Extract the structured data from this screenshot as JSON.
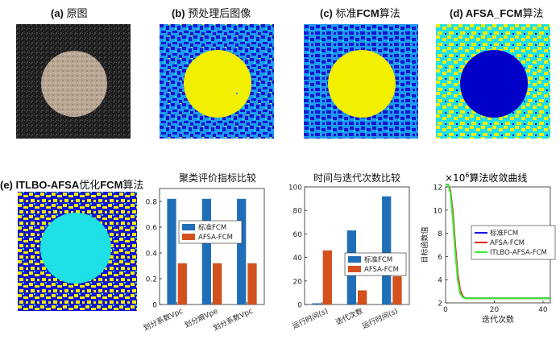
{
  "titles": {
    "a_label": "(a)",
    "a_text": "原图",
    "b_label": "(b)",
    "b_text": "预处理后图像",
    "c_label": "(c)",
    "c_text": "标准",
    "c_tail": "FCM",
    "c_end": "算法",
    "d_text": "(d) AFSA_FCM",
    "d_end": "算法",
    "e_text": "(e) ITLBO-AFSA",
    "e_mid": "优化",
    "e_fcm": "FCM",
    "e_end": "算法"
  },
  "colors": {
    "blue": "#1f1fd6",
    "yellow": "#f2ef00",
    "cyan": "#1ee0e6",
    "darkblue": "#0000c8",
    "fcm_bar": "#1f6fb8",
    "afsa_bar": "#d3511d",
    "line_blue": "#1414e6",
    "line_red": "#ee1c1c",
    "line_green": "#33ee33"
  },
  "chart_data": [
    {
      "type": "bar",
      "title": "聚类评价指标比较",
      "categories": [
        "划分系数Vpc",
        "划分熵Vpe",
        "划分系数Vpc"
      ],
      "series": [
        {
          "name": "标准FCM",
          "values": [
            0.82,
            0.82,
            0.82
          ]
        },
        {
          "name": "AFSA-FCM",
          "values": [
            0.32,
            0.32,
            0.32
          ]
        }
      ],
      "ylim": [
        0,
        0.9
      ],
      "yticks": [
        "0",
        "0.2",
        "0.4",
        "0.6",
        "0.8"
      ],
      "legend_position": "upper-middle"
    },
    {
      "type": "bar",
      "title": "时间与迭代次数比较",
      "categories": [
        "运行时间(s)",
        "迭代次数",
        "运行时间(s)"
      ],
      "series": [
        {
          "name": "标准FCM",
          "values": [
            1,
            63,
            92
          ]
        },
        {
          "name": "AFSA-FCM",
          "values": [
            46,
            12,
            24
          ]
        }
      ],
      "ylim": [
        0,
        100
      ],
      "yticks": [
        "0",
        "20",
        "40",
        "60",
        "80",
        "100"
      ],
      "legend_position": "middle-right"
    },
    {
      "type": "line",
      "title": "算法收敛曲线",
      "exponent_label": "×10",
      "exponent_power": "6",
      "xlabel": "迭代次数",
      "ylabel": "目标函数值",
      "xlim": [
        0,
        43
      ],
      "ylim": [
        2,
        12
      ],
      "xticks": [
        "0",
        "20",
        "40"
      ],
      "yticks": [
        "2",
        "4",
        "6",
        "8",
        "10",
        "12"
      ],
      "series": [
        {
          "name": "标准FCM",
          "x": [
            0,
            1,
            2,
            3,
            4,
            5,
            6,
            7,
            8,
            9,
            10,
            43
          ],
          "y": [
            12.2,
            12.2,
            11.6,
            9.5,
            6.6,
            4.2,
            2.9,
            2.5,
            2.4,
            2.4,
            2.4,
            2.4
          ]
        },
        {
          "name": "AFSA-FCM",
          "x": [
            0,
            1,
            2,
            3,
            4,
            5,
            6,
            7,
            8,
            9,
            10,
            43
          ],
          "y": [
            12.2,
            12.2,
            11.7,
            9.8,
            6.9,
            4.5,
            3.1,
            2.6,
            2.4,
            2.4,
            2.4,
            2.4
          ]
        },
        {
          "name": "ITLBO-AFSA-FCM",
          "x": [
            0,
            1,
            2,
            3,
            4,
            5,
            6,
            7,
            8,
            9,
            10,
            43
          ],
          "y": [
            12.2,
            12.2,
            11.5,
            9.2,
            6.3,
            4.0,
            2.8,
            2.5,
            2.4,
            2.4,
            2.4,
            2.4
          ]
        }
      ],
      "legend_position": "top-right"
    }
  ]
}
